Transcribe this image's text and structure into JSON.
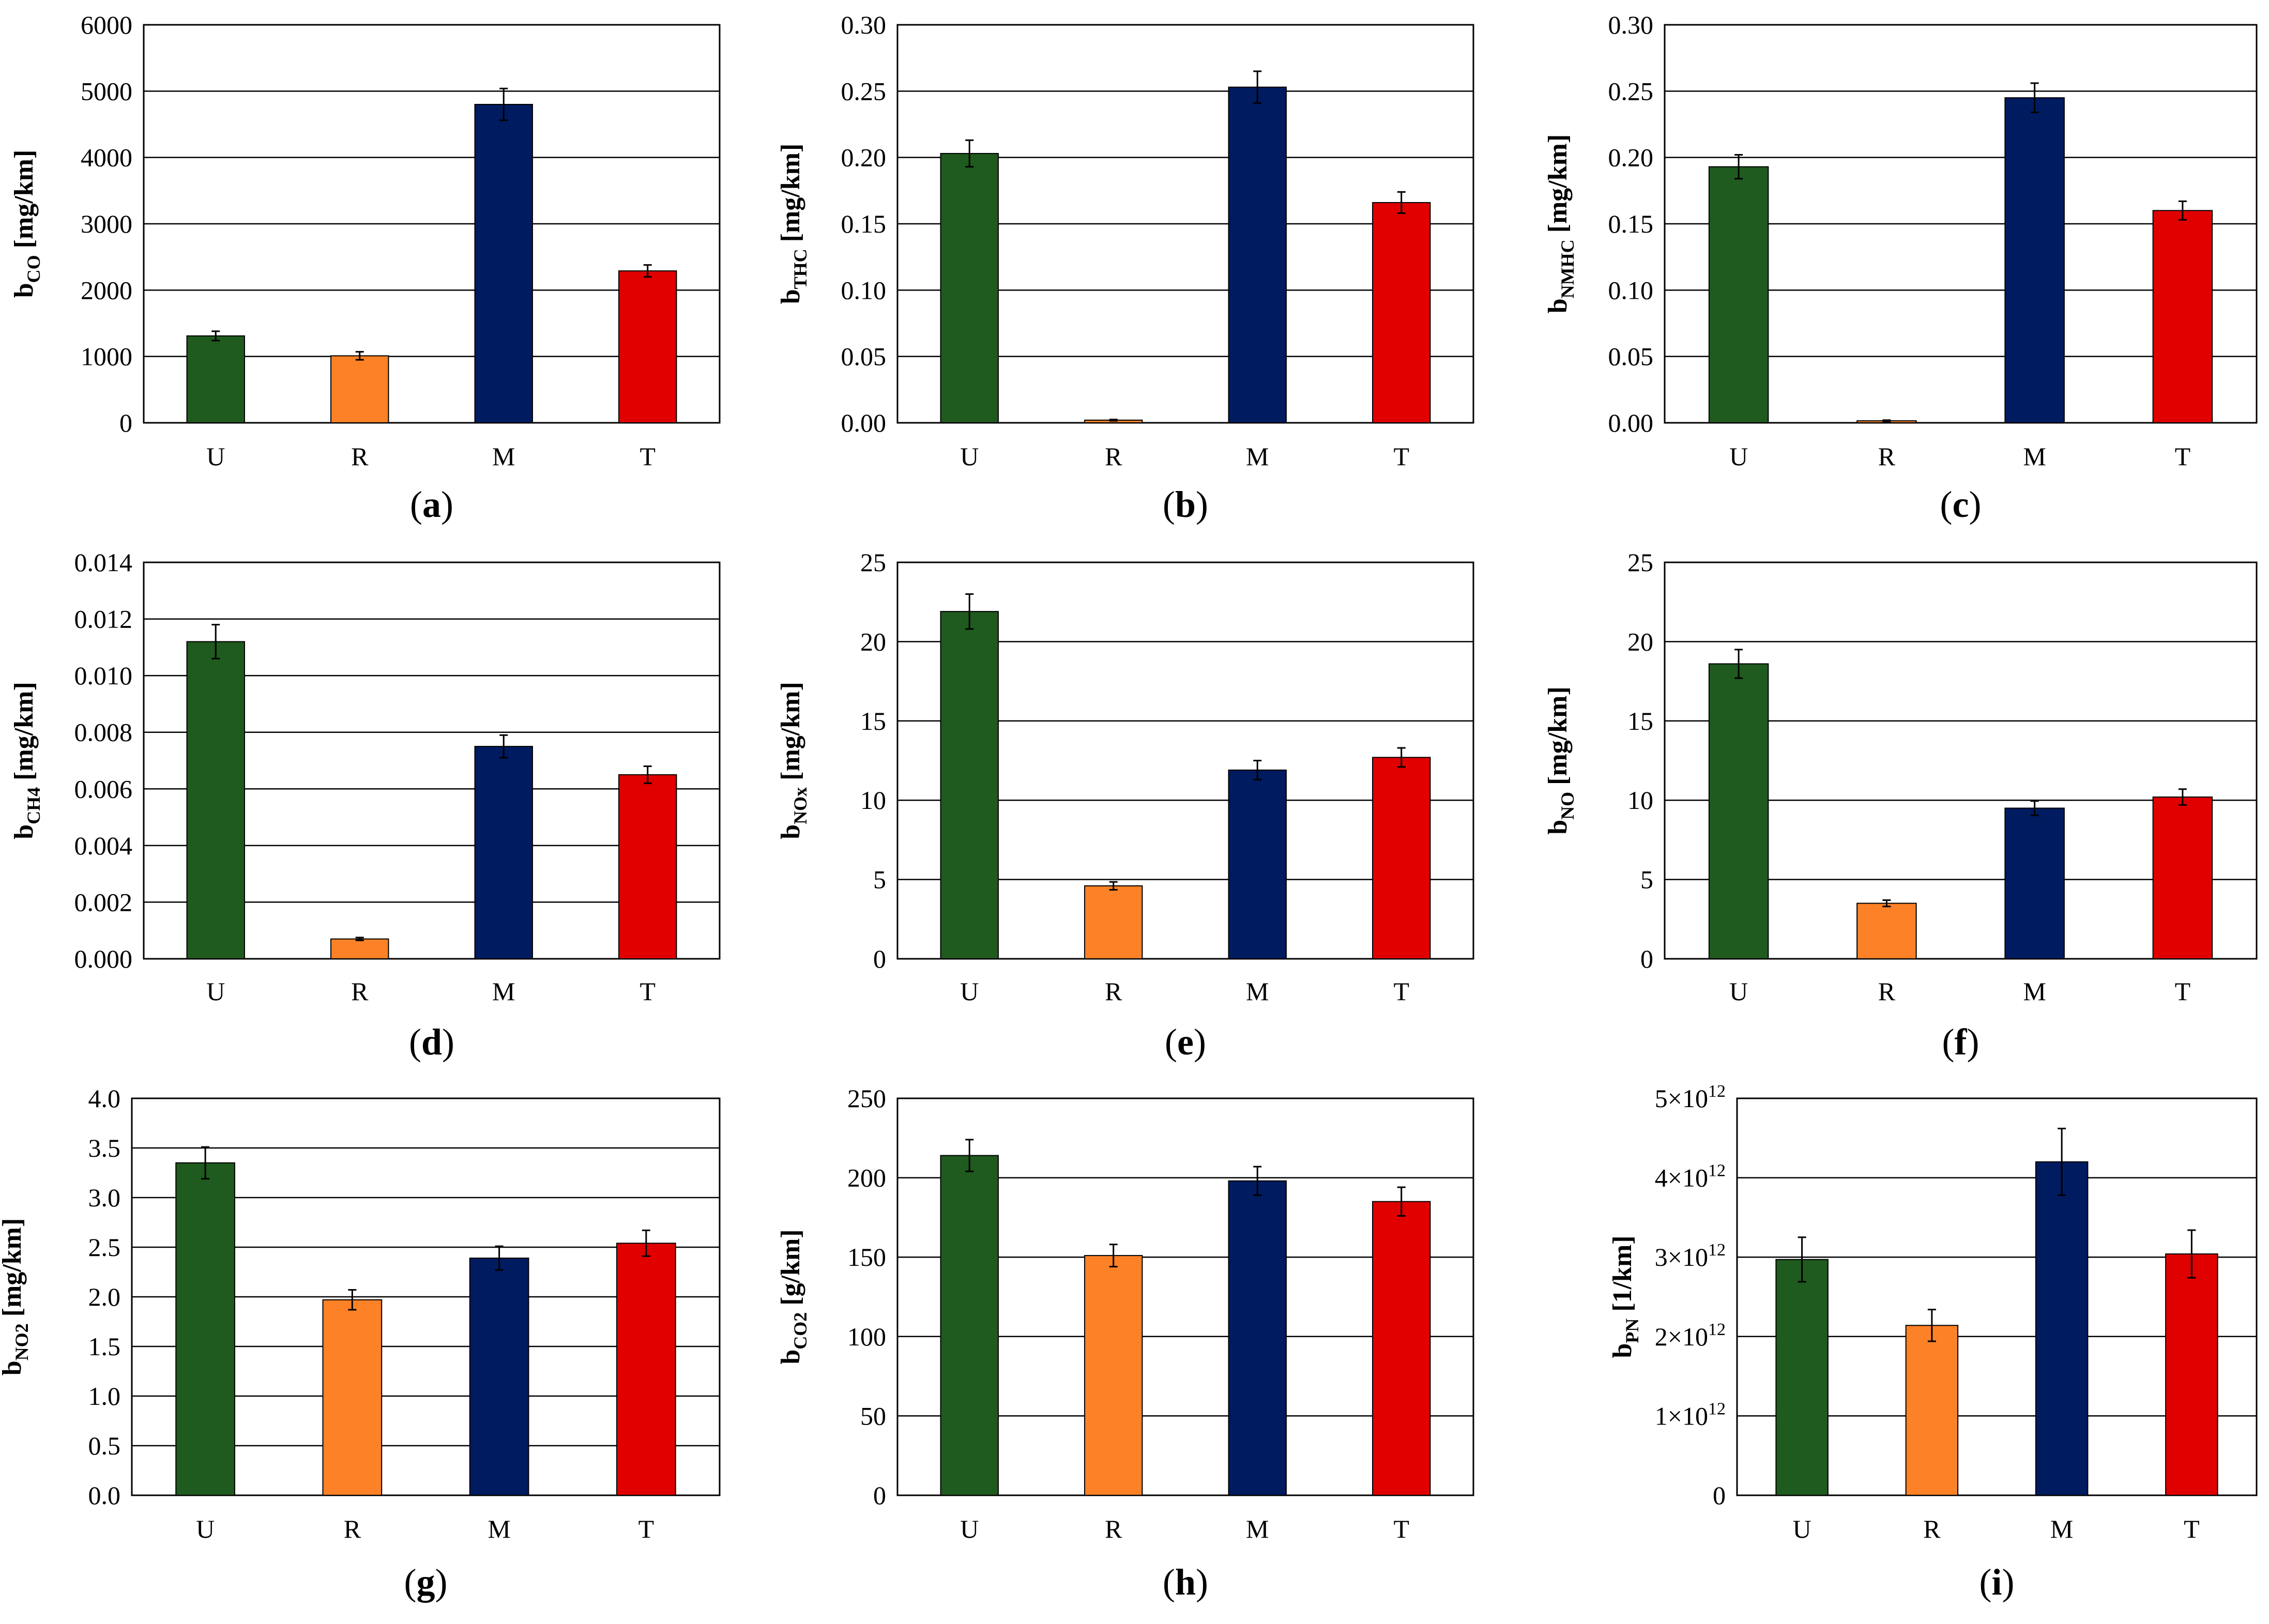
{
  "colors": {
    "U": "#1f5a1e",
    "R": "#fd8126",
    "M": "#001b5f",
    "T": "#e00000",
    "grid": "#000000",
    "errorbar": "#000000"
  },
  "chart_data": [
    {
      "type": "bar",
      "panel": "a",
      "panel_label": "a",
      "ylabel_main": "b",
      "ylabel_sub": "CO",
      "ylabel_unit": " [mg/km]",
      "categories": [
        "U",
        "R",
        "M",
        "T"
      ],
      "values": [
        1310,
        1010,
        4800,
        2290
      ],
      "errors": [
        70,
        60,
        240,
        90
      ],
      "ylim": [
        0,
        6000
      ],
      "yticks": [
        0,
        1000,
        2000,
        3000,
        4000,
        5000,
        6000
      ],
      "ytick_labels": [
        "0",
        "1000",
        "2000",
        "3000",
        "4000",
        "5000",
        "6000"
      ],
      "grid": true
    },
    {
      "type": "bar",
      "panel": "b",
      "panel_label": "b",
      "ylabel_main": "b",
      "ylabel_sub": "THC",
      "ylabel_unit": " [mg/km]",
      "categories": [
        "U",
        "R",
        "M",
        "T"
      ],
      "values": [
        0.203,
        0.002,
        0.253,
        0.166
      ],
      "errors": [
        0.01,
        0.0005,
        0.012,
        0.008
      ],
      "ylim": [
        0,
        0.3
      ],
      "yticks": [
        0,
        0.05,
        0.1,
        0.15,
        0.2,
        0.25,
        0.3
      ],
      "ytick_labels": [
        "0.00",
        "0.05",
        "0.10",
        "0.15",
        "0.20",
        "0.25",
        "0.30"
      ],
      "grid": true
    },
    {
      "type": "bar",
      "panel": "c",
      "panel_label": "c",
      "ylabel_main": "b",
      "ylabel_sub": "NMHC",
      "ylabel_unit": " [mg/km]",
      "categories": [
        "U",
        "R",
        "M",
        "T"
      ],
      "values": [
        0.193,
        0.0015,
        0.245,
        0.16
      ],
      "errors": [
        0.009,
        0.0005,
        0.011,
        0.007
      ],
      "ylim": [
        0,
        0.3
      ],
      "yticks": [
        0,
        0.05,
        0.1,
        0.15,
        0.2,
        0.25,
        0.3
      ],
      "ytick_labels": [
        "0.00",
        "0.05",
        "0.10",
        "0.15",
        "0.20",
        "0.25",
        "0.30"
      ],
      "grid": true
    },
    {
      "type": "bar",
      "panel": "d",
      "panel_label": "d",
      "ylabel_main": "b",
      "ylabel_sub": "CH4",
      "ylabel_unit": " [mg/km]",
      "categories": [
        "U",
        "R",
        "M",
        "T"
      ],
      "values": [
        0.0112,
        0.0007,
        0.0075,
        0.0065
      ],
      "errors": [
        0.0006,
        5e-05,
        0.0004,
        0.0003
      ],
      "ylim": [
        0,
        0.014
      ],
      "yticks": [
        0,
        0.002,
        0.004,
        0.006,
        0.008,
        0.01,
        0.012,
        0.014
      ],
      "ytick_labels": [
        "0.000",
        "0.002",
        "0.004",
        "0.006",
        "0.008",
        "0.010",
        "0.012",
        "0.014"
      ],
      "grid": true
    },
    {
      "type": "bar",
      "panel": "e",
      "panel_label": "e",
      "ylabel_main": "b",
      "ylabel_sub": "NOx",
      "ylabel_unit": " [mg/km]",
      "categories": [
        "U",
        "R",
        "M",
        "T"
      ],
      "values": [
        21.9,
        4.6,
        11.9,
        12.7
      ],
      "errors": [
        1.1,
        0.25,
        0.6,
        0.6
      ],
      "ylim": [
        0,
        25
      ],
      "yticks": [
        0,
        5,
        10,
        15,
        20,
        25
      ],
      "ytick_labels": [
        "0",
        "5",
        "10",
        "15",
        "20",
        "25"
      ],
      "grid": true
    },
    {
      "type": "bar",
      "panel": "f",
      "panel_label": "f",
      "ylabel_main": "b",
      "ylabel_sub": "NO",
      "ylabel_unit": " [mg/km]",
      "categories": [
        "U",
        "R",
        "M",
        "T"
      ],
      "values": [
        18.6,
        3.5,
        9.5,
        10.2
      ],
      "errors": [
        0.9,
        0.2,
        0.45,
        0.5
      ],
      "ylim": [
        0,
        25
      ],
      "yticks": [
        0,
        5,
        10,
        15,
        20,
        25
      ],
      "ytick_labels": [
        "0",
        "5",
        "10",
        "15",
        "20",
        "25"
      ],
      "grid": true
    },
    {
      "type": "bar",
      "panel": "g",
      "panel_label": "g",
      "ylabel_main": "b",
      "ylabel_sub": "NO2",
      "ylabel_unit": " [mg/km]",
      "categories": [
        "U",
        "R",
        "M",
        "T"
      ],
      "values": [
        3.35,
        1.97,
        2.39,
        2.54
      ],
      "errors": [
        0.16,
        0.1,
        0.12,
        0.13
      ],
      "ylim": [
        0,
        4.0
      ],
      "yticks": [
        0,
        0.5,
        1.0,
        1.5,
        2.0,
        2.5,
        3.0,
        3.5,
        4.0
      ],
      "ytick_labels": [
        "0.0",
        "0.5",
        "1.0",
        "1.5",
        "2.0",
        "2.5",
        "3.0",
        "3.5",
        "4.0"
      ],
      "grid": true
    },
    {
      "type": "bar",
      "panel": "h",
      "panel_label": "h",
      "ylabel_main": "b",
      "ylabel_sub": "CO2",
      "ylabel_unit": " [g/km]",
      "categories": [
        "U",
        "R",
        "M",
        "T"
      ],
      "values": [
        214,
        151,
        198,
        185
      ],
      "errors": [
        10,
        7,
        9,
        9
      ],
      "ylim": [
        0,
        250
      ],
      "yticks": [
        0,
        50,
        100,
        150,
        200,
        250
      ],
      "ytick_labels": [
        "0",
        "50",
        "100",
        "150",
        "200",
        "250"
      ],
      "grid": true
    },
    {
      "type": "bar",
      "panel": "i",
      "panel_label": "i",
      "ylabel_main": "b",
      "ylabel_sub": "PN",
      "ylabel_unit": " [1/km]",
      "categories": [
        "U",
        "R",
        "M",
        "T"
      ],
      "values": [
        2970000000000.0,
        2140000000000.0,
        4200000000000.0,
        3040000000000.0
      ],
      "errors": [
        280000000000.0,
        200000000000.0,
        420000000000.0,
        300000000000.0
      ],
      "ylim": [
        0,
        5000000000000.0
      ],
      "yticks": [
        0,
        1000000000000.0,
        2000000000000.0,
        3000000000000.0,
        4000000000000.0,
        5000000000000.0
      ],
      "ytick_labels": [
        "0",
        "1×10",
        "2×10",
        "3×10",
        "4×10",
        "5×10"
      ],
      "ytick_exponents": [
        "",
        "12",
        "12",
        "12",
        "12",
        "12"
      ],
      "grid": true
    }
  ]
}
